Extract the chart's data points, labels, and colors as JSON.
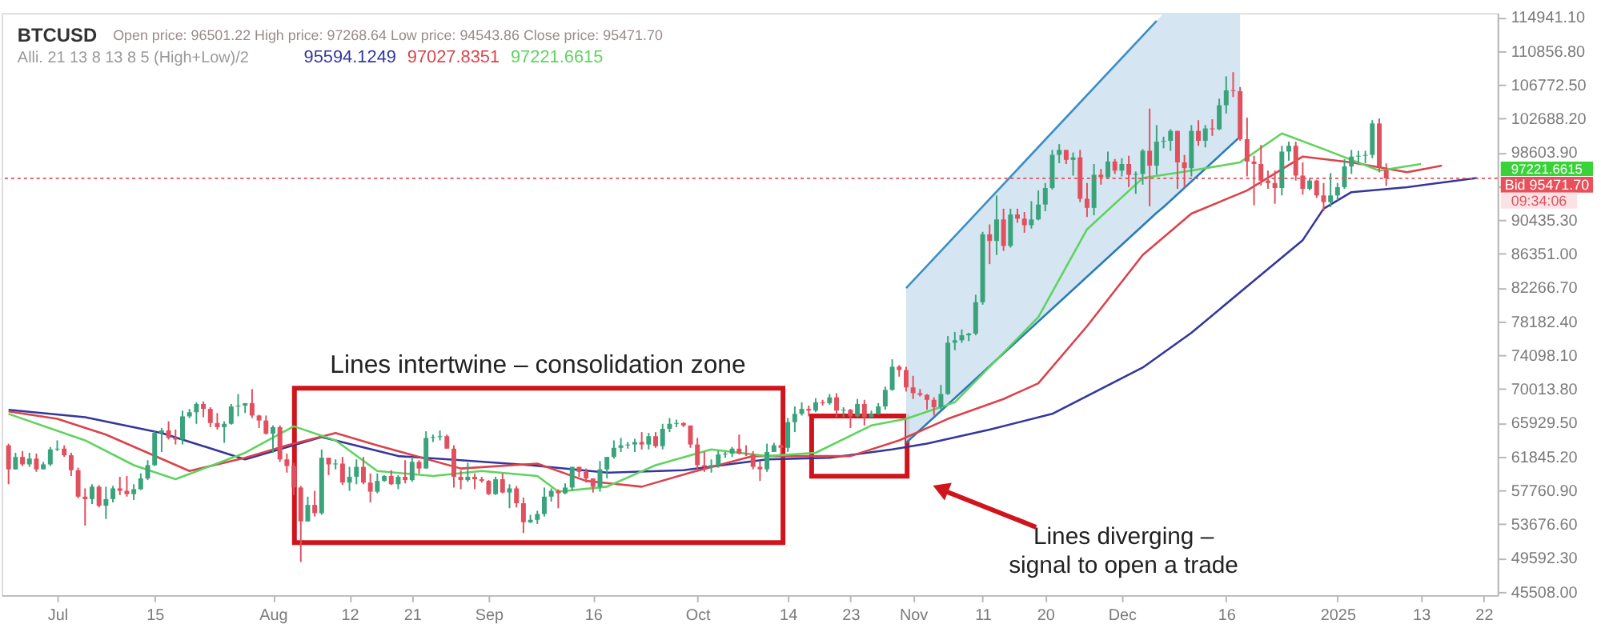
{
  "chart_data": {
    "type": "candlestick",
    "title": "BTCUSD",
    "subtitle": "Open price: 96501.22   High price: 97268.64   Low price: 94543.86   Close price: 95471.70",
    "x": [
      "2024-06-24",
      "2024-06-25",
      "2024-06-26",
      "2024-06-27",
      "2024-06-28",
      "2024-06-29",
      "2024-06-30",
      "2024-07-01",
      "2024-07-02",
      "2024-07-03",
      "2024-07-04",
      "2024-07-05",
      "2024-07-06",
      "2024-07-07",
      "2024-07-08",
      "2024-07-09",
      "2024-07-10",
      "2024-07-11",
      "2024-07-12",
      "2024-07-13",
      "2024-07-14",
      "2024-07-15",
      "2024-07-16",
      "2024-07-17",
      "2024-07-18",
      "2024-07-19",
      "2024-07-20",
      "2024-07-21",
      "2024-07-22",
      "2024-07-23",
      "2024-07-24",
      "2024-07-25",
      "2024-07-26",
      "2024-07-27",
      "2024-07-28",
      "2024-07-29",
      "2024-07-30",
      "2024-07-31",
      "2024-08-01",
      "2024-08-02",
      "2024-08-03",
      "2024-08-04",
      "2024-08-05",
      "2024-08-06",
      "2024-08-07",
      "2024-08-08",
      "2024-08-09",
      "2024-08-10",
      "2024-08-11",
      "2024-08-12",
      "2024-08-13",
      "2024-08-14",
      "2024-08-15",
      "2024-08-16",
      "2024-08-17",
      "2024-08-18",
      "2024-08-19",
      "2024-08-20",
      "2024-08-21",
      "2024-08-22",
      "2024-08-23",
      "2024-08-24",
      "2024-08-25",
      "2024-08-26",
      "2024-08-27",
      "2024-08-28",
      "2024-08-29",
      "2024-08-30",
      "2024-08-31",
      "2024-09-01",
      "2024-09-02",
      "2024-09-03",
      "2024-09-04",
      "2024-09-05",
      "2024-09-06",
      "2024-09-07",
      "2024-09-08",
      "2024-09-09",
      "2024-09-10",
      "2024-09-11",
      "2024-09-12",
      "2024-09-13",
      "2024-09-14",
      "2024-09-15",
      "2024-09-16",
      "2024-09-17",
      "2024-09-18",
      "2024-09-19",
      "2024-09-20",
      "2024-09-21",
      "2024-09-22",
      "2024-09-23",
      "2024-09-24",
      "2024-09-25",
      "2024-09-26",
      "2024-09-27",
      "2024-09-28",
      "2024-09-29",
      "2024-09-30",
      "2024-10-01",
      "2024-10-02",
      "2024-10-03",
      "2024-10-04",
      "2024-10-05",
      "2024-10-06",
      "2024-10-07",
      "2024-10-08",
      "2024-10-09",
      "2024-10-10",
      "2024-10-11",
      "2024-10-12",
      "2024-10-13",
      "2024-10-14",
      "2024-10-15",
      "2024-10-16",
      "2024-10-17",
      "2024-10-18",
      "2024-10-19",
      "2024-10-20",
      "2024-10-21",
      "2024-10-22",
      "2024-10-23",
      "2024-10-24",
      "2024-10-25",
      "2024-10-26",
      "2024-10-27",
      "2024-10-28",
      "2024-10-29",
      "2024-10-30",
      "2024-10-31",
      "2024-11-01",
      "2024-11-02",
      "2024-11-03",
      "2024-11-04",
      "2024-11-05",
      "2024-11-06",
      "2024-11-07",
      "2024-11-08",
      "2024-11-09",
      "2024-11-10",
      "2024-11-11",
      "2024-11-12",
      "2024-11-13",
      "2024-11-14",
      "2024-11-15",
      "2024-11-16",
      "2024-11-17",
      "2024-11-18",
      "2024-11-19",
      "2024-11-20",
      "2024-11-21",
      "2024-11-22",
      "2024-11-23",
      "2024-11-24",
      "2024-11-25",
      "2024-11-26",
      "2024-11-27",
      "2024-11-28",
      "2024-11-29",
      "2024-11-30",
      "2024-12-01",
      "2024-12-02",
      "2024-12-03",
      "2024-12-04",
      "2024-12-05",
      "2024-12-06",
      "2024-12-07",
      "2024-12-08",
      "2024-12-09",
      "2024-12-10",
      "2024-12-11",
      "2024-12-12",
      "2024-12-13",
      "2024-12-14",
      "2024-12-15",
      "2024-12-16",
      "2024-12-17",
      "2024-12-18",
      "2024-12-19",
      "2024-12-20",
      "2024-12-21",
      "2024-12-22",
      "2024-12-23",
      "2024-12-24",
      "2024-12-25",
      "2024-12-26",
      "2024-12-27",
      "2024-12-28",
      "2024-12-29",
      "2024-12-30",
      "2024-12-31",
      "2025-01-01",
      "2025-01-02",
      "2025-01-03",
      "2025-01-04",
      "2025-01-05",
      "2025-01-06",
      "2025-01-07",
      "2025-01-08"
    ],
    "ohlc": [
      [
        63200,
        63400,
        58500,
        60300
      ],
      [
        60300,
        62300,
        60300,
        61800
      ],
      [
        61800,
        62500,
        60700,
        60900
      ],
      [
        60900,
        62300,
        60600,
        61600
      ],
      [
        61600,
        62200,
        60000,
        60300
      ],
      [
        60300,
        61200,
        60300,
        60900
      ],
      [
        60900,
        63000,
        60700,
        62700
      ],
      [
        62700,
        63800,
        62500,
        62800
      ],
      [
        62800,
        63200,
        61800,
        62000
      ],
      [
        62000,
        62300,
        59500,
        60200
      ],
      [
        60200,
        60500,
        56800,
        57000
      ],
      [
        57000,
        58000,
        53500,
        56700
      ],
      [
        56700,
        58500,
        56100,
        58200
      ],
      [
        58200,
        58400,
        55700,
        55900
      ],
      [
        55900,
        58200,
        54300,
        56700
      ],
      [
        56700,
        58300,
        56300,
        58000
      ],
      [
        58000,
        59400,
        57200,
        57700
      ],
      [
        57700,
        59500,
        57000,
        57300
      ],
      [
        57300,
        58500,
        56600,
        57900
      ],
      [
        57900,
        59800,
        57800,
        59200
      ],
      [
        59200,
        61400,
        59000,
        60800
      ],
      [
        60800,
        64900,
        60700,
        64700
      ],
      [
        64700,
        65300,
        62400,
        65000
      ],
      [
        65000,
        66100,
        63900,
        64100
      ],
      [
        64100,
        65100,
        63300,
        63900
      ],
      [
        63900,
        67400,
        63300,
        66700
      ],
      [
        66700,
        67600,
        66500,
        67200
      ],
      [
        67200,
        68400,
        65800,
        68200
      ],
      [
        68200,
        68500,
        66600,
        67600
      ],
      [
        67600,
        67800,
        65400,
        65900
      ],
      [
        65900,
        67100,
        65100,
        65400
      ],
      [
        65400,
        66100,
        63500,
        65800
      ],
      [
        65800,
        68200,
        65700,
        67900
      ],
      [
        67900,
        69400,
        66700,
        68000
      ],
      [
        68000,
        68300,
        67100,
        68300
      ],
      [
        68300,
        70000,
        66500,
        66800
      ],
      [
        66800,
        66900,
        65300,
        66200
      ],
      [
        66200,
        66800,
        64500,
        64600
      ],
      [
        64600,
        65600,
        62300,
        65400
      ],
      [
        65400,
        65600,
        61200,
        61500
      ],
      [
        61500,
        62200,
        59900,
        60700
      ],
      [
        60700,
        61100,
        57200,
        58100
      ],
      [
        58100,
        58300,
        49100,
        54000
      ],
      [
        54000,
        57000,
        54000,
        56000
      ],
      [
        56000,
        57700,
        54600,
        55000
      ],
      [
        55000,
        62700,
        54800,
        61700
      ],
      [
        61700,
        61700,
        59600,
        60900
      ],
      [
        60900,
        61500,
        60300,
        61000
      ],
      [
        61000,
        61800,
        58400,
        58700
      ],
      [
        58700,
        60600,
        57700,
        59400
      ],
      [
        59400,
        61500,
        58500,
        60600
      ],
      [
        60600,
        61800,
        58500,
        58700
      ],
      [
        58700,
        59800,
        56300,
        57600
      ],
      [
        57600,
        59800,
        57400,
        58900
      ],
      [
        58900,
        59600,
        58800,
        59500
      ],
      [
        59500,
        60200,
        58400,
        58500
      ],
      [
        58500,
        59600,
        57900,
        59400
      ],
      [
        59400,
        61400,
        58600,
        59000
      ],
      [
        59000,
        61800,
        58800,
        61200
      ],
      [
        61200,
        61400,
        59800,
        60400
      ],
      [
        60400,
        64900,
        60400,
        64100
      ],
      [
        64100,
        64500,
        63600,
        64200
      ],
      [
        64200,
        65000,
        63800,
        64300
      ],
      [
        64300,
        64500,
        62800,
        62800
      ],
      [
        62800,
        63200,
        58100,
        59400
      ],
      [
        59400,
        60200,
        57900,
        59000
      ],
      [
        59000,
        61100,
        58800,
        59400
      ],
      [
        59400,
        59800,
        57900,
        59100
      ],
      [
        59100,
        59400,
        58700,
        58900
      ],
      [
        58900,
        59000,
        57200,
        57300
      ],
      [
        57300,
        59400,
        57200,
        59100
      ],
      [
        59100,
        59800,
        57400,
        57500
      ],
      [
        57500,
        58500,
        55600,
        58000
      ],
      [
        58000,
        58300,
        55700,
        56200
      ],
      [
        56200,
        56900,
        52600,
        53900
      ],
      [
        53900,
        54800,
        53800,
        54200
      ],
      [
        54200,
        55300,
        53700,
        54900
      ],
      [
        54900,
        58100,
        54600,
        57000
      ],
      [
        57000,
        58000,
        56400,
        57700
      ],
      [
        57700,
        57900,
        55600,
        57400
      ],
      [
        57400,
        58600,
        57300,
        58100
      ],
      [
        58100,
        60600,
        57700,
        60600
      ],
      [
        60600,
        60600,
        59400,
        60000
      ],
      [
        60000,
        60400,
        58700,
        59200
      ],
      [
        59200,
        59200,
        57500,
        58200
      ],
      [
        58200,
        61300,
        57600,
        60300
      ],
      [
        60300,
        61800,
        59200,
        61800
      ],
      [
        61800,
        63800,
        61600,
        62900
      ],
      [
        62900,
        64100,
        62400,
        63200
      ],
      [
        63200,
        63600,
        62800,
        63300
      ],
      [
        63300,
        64000,
        62400,
        63600
      ],
      [
        63600,
        64800,
        62700,
        63300
      ],
      [
        63300,
        64700,
        62700,
        64300
      ],
      [
        64300,
        64800,
        62900,
        63100
      ],
      [
        63100,
        65800,
        62700,
        65200
      ],
      [
        65200,
        66500,
        64800,
        65800
      ],
      [
        65800,
        66300,
        65400,
        65900
      ],
      [
        65900,
        66000,
        65400,
        65600
      ],
      [
        65600,
        65600,
        62900,
        63300
      ],
      [
        63300,
        64100,
        60100,
        60800
      ],
      [
        60800,
        62400,
        60000,
        60600
      ],
      [
        60600,
        61500,
        59900,
        60800
      ],
      [
        60800,
        62500,
        60500,
        62100
      ],
      [
        62100,
        62400,
        61700,
        62200
      ],
      [
        62200,
        63000,
        61800,
        62800
      ],
      [
        62800,
        64500,
        62100,
        62200
      ],
      [
        62200,
        63200,
        61900,
        62100
      ],
      [
        62100,
        62500,
        60300,
        60600
      ],
      [
        60600,
        61300,
        58900,
        60300
      ],
      [
        60300,
        63400,
        60000,
        62400
      ],
      [
        62400,
        63500,
        62400,
        63200
      ],
      [
        63200,
        63300,
        62100,
        62900
      ],
      [
        62900,
        66500,
        62400,
        66000
      ],
      [
        66000,
        67900,
        64800,
        67000
      ],
      [
        67000,
        68400,
        66800,
        67600
      ],
      [
        67600,
        68000,
        66700,
        67400
      ],
      [
        67400,
        68900,
        67200,
        68400
      ],
      [
        68400,
        68700,
        68000,
        68300
      ],
      [
        68300,
        69400,
        68100,
        69000
      ],
      [
        69000,
        69500,
        66600,
        67400
      ],
      [
        67400,
        67800,
        66600,
        67500
      ],
      [
        67500,
        67600,
        65300,
        66700
      ],
      [
        66700,
        68800,
        66600,
        68200
      ],
      [
        68200,
        68700,
        65600,
        66600
      ],
      [
        66600,
        67400,
        66600,
        67000
      ],
      [
        67000,
        68300,
        66900,
        67900
      ],
      [
        67900,
        70300,
        67500,
        69900
      ],
      [
        69900,
        73600,
        69800,
        72700
      ],
      [
        72700,
        72900,
        71500,
        72300
      ],
      [
        72300,
        72700,
        69700,
        70200
      ],
      [
        70200,
        71600,
        68800,
        69500
      ],
      [
        69500,
        70000,
        69100,
        69300
      ],
      [
        69300,
        69400,
        67500,
        68700
      ],
      [
        68700,
        69000,
        66800,
        67800
      ],
      [
        67800,
        70500,
        67500,
        69400
      ],
      [
        69400,
        76400,
        69300,
        75600
      ],
      [
        75600,
        76900,
        74700,
        75900
      ],
      [
        75900,
        77200,
        75600,
        76500
      ],
      [
        76500,
        76800,
        75800,
        76700
      ],
      [
        76700,
        81400,
        76500,
        80500
      ],
      [
        80500,
        89000,
        80200,
        88700
      ],
      [
        88700,
        89900,
        85100,
        87900
      ],
      [
        87900,
        93400,
        86200,
        90500
      ],
      [
        90500,
        91800,
        86700,
        87300
      ],
      [
        87300,
        91800,
        87100,
        91100
      ],
      [
        91100,
        91800,
        90100,
        90600
      ],
      [
        90600,
        91400,
        88900,
        89800
      ],
      [
        89800,
        92700,
        89400,
        90500
      ],
      [
        90500,
        94000,
        90400,
        92300
      ],
      [
        92300,
        94900,
        91500,
        94300
      ],
      [
        94300,
        98900,
        94100,
        98300
      ],
      [
        98300,
        99600,
        97300,
        98900
      ],
      [
        98900,
        98900,
        97200,
        97700
      ],
      [
        97700,
        98600,
        95800,
        98000
      ],
      [
        98000,
        98900,
        92600,
        93000
      ],
      [
        93000,
        94900,
        90800,
        91900
      ],
      [
        91900,
        97200,
        91000,
        95900
      ],
      [
        95900,
        96600,
        94700,
        95600
      ],
      [
        95600,
        98700,
        95400,
        97500
      ],
      [
        97500,
        97800,
        96000,
        96400
      ],
      [
        96400,
        97900,
        95700,
        97200
      ],
      [
        97200,
        98200,
        94400,
        95900
      ],
      [
        95900,
        96300,
        93600,
        96000
      ],
      [
        96000,
        99000,
        94700,
        98800
      ],
      [
        98800,
        103900,
        92100,
        97000
      ],
      [
        97000,
        101900,
        95900,
        99900
      ],
      [
        99900,
        100500,
        99100,
        100000
      ],
      [
        100000,
        101400,
        98800,
        101200
      ],
      [
        101200,
        101200,
        94200,
        97400
      ],
      [
        97400,
        98300,
        94300,
        96700
      ],
      [
        96700,
        101900,
        95700,
        101200
      ],
      [
        101200,
        102500,
        99400,
        100000
      ],
      [
        100000,
        101900,
        99200,
        101500
      ],
      [
        101500,
        102600,
        100600,
        101400
      ],
      [
        101400,
        105100,
        101300,
        104300
      ],
      [
        104300,
        107800,
        103300,
        106100
      ],
      [
        106100,
        108300,
        105300,
        106000
      ],
      [
        106000,
        106500,
        100000,
        100200
      ],
      [
        100200,
        102800,
        95700,
        97500
      ],
      [
        97500,
        98200,
        92200,
        97200
      ],
      [
        97200,
        99500,
        94600,
        95200
      ],
      [
        95200,
        96400,
        94200,
        94900
      ],
      [
        94900,
        96400,
        92400,
        94300
      ],
      [
        94300,
        99400,
        93400,
        98700
      ],
      [
        98700,
        99900,
        97600,
        99400
      ],
      [
        99400,
        99900,
        95200,
        95800
      ],
      [
        95800,
        97400,
        93500,
        94200
      ],
      [
        94200,
        95500,
        94000,
        95200
      ],
      [
        95200,
        95300,
        93100,
        93400
      ],
      [
        93400,
        94900,
        91500,
        92600
      ],
      [
        92600,
        96100,
        92000,
        93400
      ],
      [
        93400,
        94900,
        92800,
        94400
      ],
      [
        94400,
        97800,
        94200,
        96900
      ],
      [
        96900,
        98900,
        96000,
        98100
      ],
      [
        98100,
        98800,
        97300,
        98200
      ],
      [
        98200,
        98800,
        97300,
        98300
      ],
      [
        98300,
        102500,
        97900,
        102100
      ],
      [
        102100,
        102700,
        96200,
        96900
      ],
      [
        96501.22,
        97268.64,
        94543.86,
        95471.7
      ]
    ],
    "series": [
      {
        "type": "line",
        "color": "#3b8ec6",
        "x": [
          "2024-10-31",
          "2024-12-06"
        ],
        "values": [
          82200,
          114500
        ]
      },
      {
        "type": "line",
        "color": "#2a7bb8",
        "x": [
          "2024-10-31",
          "2024-12-06",
          "2024-12-07",
          "2024-12-18"
        ],
        "values": [
          63500,
          91300,
          92000,
          100500
        ],
        "lower": [
          63500,
          91300,
          92000,
          100500
        ],
        "upper": [
          82200,
          114500,
          115400,
          115400
        ]
      },
      {
        "type": "line",
        "color": "#34369c",
        "x": [
          "2024-06-24",
          "2024-07-05",
          "2024-07-16",
          "2024-07-28",
          "2024-08-08",
          "2024-08-19",
          "2024-08-28",
          "2024-09-07",
          "2024-09-18",
          "2024-09-29",
          "2024-10-11",
          "2024-10-20",
          "2024-10-29",
          "2024-11-03",
          "2024-11-12",
          "2024-11-21",
          "2024-12-04",
          "2024-12-11",
          "2024-12-19",
          "2024-12-27",
          "2024-12-30",
          "2025-01-03",
          "2025-01-11",
          "2025-01-21"
        ],
        "values": [
          67500,
          66600,
          64700,
          61500,
          64200,
          61900,
          61400,
          60800,
          59900,
          60200,
          61500,
          61700,
          62700,
          63400,
          65100,
          67000,
          72600,
          76800,
          82400,
          88000,
          91800,
          93800,
          94400,
          95500
        ]
      },
      {
        "type": "line",
        "color": "#d9434b",
        "x": [
          "2024-06-24",
          "2024-07-01",
          "2024-07-08",
          "2024-07-20",
          "2024-07-28",
          "2024-08-03",
          "2024-08-10",
          "2024-08-16",
          "2024-08-28",
          "2024-09-08",
          "2024-09-15",
          "2024-09-23",
          "2024-09-30",
          "2024-10-09",
          "2024-10-15",
          "2024-10-23",
          "2024-10-30",
          "2024-11-06",
          "2024-11-14",
          "2024-11-19",
          "2024-11-26",
          "2024-12-04",
          "2024-12-11",
          "2024-12-19",
          "2024-12-27",
          "2025-01-03",
          "2025-01-11",
          "2025-01-16"
        ],
        "values": [
          67300,
          66400,
          64500,
          60100,
          61700,
          63200,
          64700,
          63200,
          60400,
          61000,
          58900,
          58200,
          59900,
          61900,
          61900,
          61900,
          63800,
          66400,
          68800,
          70700,
          77600,
          86200,
          91200,
          94000,
          98100,
          97400,
          96200,
          97000
        ]
      },
      {
        "type": "line",
        "color": "#5fd35f",
        "x": [
          "2024-06-24",
          "2024-07-05",
          "2024-07-12",
          "2024-07-18",
          "2024-07-28",
          "2024-08-04",
          "2024-08-10",
          "2024-08-16",
          "2024-08-24",
          "2024-08-31",
          "2024-09-08",
          "2024-09-11",
          "2024-09-18",
          "2024-09-25",
          "2024-10-03",
          "2024-10-11",
          "2024-10-18",
          "2024-10-26",
          "2024-10-31",
          "2024-11-07",
          "2024-11-19",
          "2024-11-26",
          "2024-12-04",
          "2024-12-11",
          "2024-12-18",
          "2024-12-24",
          "2024-12-30",
          "2025-01-07",
          "2025-01-13"
        ],
        "values": [
          67000,
          63800,
          60800,
          59100,
          62300,
          65500,
          63800,
          60100,
          59500,
          60100,
          59500,
          57600,
          58200,
          60800,
          62700,
          61900,
          62300,
          65600,
          66400,
          68400,
          78700,
          89300,
          95500,
          96400,
          97400,
          100900,
          99000,
          96400,
          97200
        ]
      }
    ],
    "xlim": [
      "2024-06-23",
      "2025-01-24"
    ],
    "ylim": [
      45100,
      115450
    ],
    "xticks": [
      {
        "value": "2024-07-01",
        "label": "Jul"
      },
      {
        "value": "2024-07-15",
        "label": "15"
      },
      {
        "value": "2024-08-01",
        "label": "Aug"
      },
      {
        "value": "2024-08-12",
        "label": "12"
      },
      {
        "value": "2024-08-21",
        "label": "21"
      },
      {
        "value": "2024-09-01",
        "label": "Sep"
      },
      {
        "value": "2024-09-16",
        "label": "16"
      },
      {
        "value": "2024-10-01",
        "label": "Oct"
      },
      {
        "value": "2024-10-14",
        "label": "14"
      },
      {
        "value": "2024-10-23",
        "label": "23"
      },
      {
        "value": "2024-11-01",
        "label": "Nov"
      },
      {
        "value": "2024-11-11",
        "label": "11"
      },
      {
        "value": "2024-11-20",
        "label": "20"
      },
      {
        "value": "2024-12-01",
        "label": "Dec"
      },
      {
        "value": "2024-12-16",
        "label": "16"
      },
      {
        "value": "2025-01-01",
        "label": "2025"
      },
      {
        "value": "2025-01-13",
        "label": "13"
      },
      {
        "value": "2025-01-22",
        "label": "22"
      }
    ],
    "yticks": [
      {
        "value": 45508,
        "label": "45508.00"
      },
      {
        "value": 49592.3,
        "label": "49592.30"
      },
      {
        "value": 53676.6,
        "label": "53676.60"
      },
      {
        "value": 57760.9,
        "label": "57760.90"
      },
      {
        "value": 61845.2,
        "label": "61845.20"
      },
      {
        "value": 65929.5,
        "label": "65929.50"
      },
      {
        "value": 70013.8,
        "label": "70013.80"
      },
      {
        "value": 74098.1,
        "label": "74098.10"
      },
      {
        "value": 78182.4,
        "label": "78182.40"
      },
      {
        "value": 82266.7,
        "label": "82266.70"
      },
      {
        "value": 86351,
        "label": "86351.00"
      },
      {
        "value": 90435.3,
        "label": "90435.30"
      },
      {
        "value": 94519.6,
        "label": null
      },
      {
        "value": 98603.9,
        "label": "98603.90"
      },
      {
        "value": 102688.2,
        "label": "102688.20"
      },
      {
        "value": 106772.5,
        "label": "106772.50"
      },
      {
        "value": 110856.8,
        "label": "110856.80"
      },
      {
        "value": 114941.1,
        "label": "114941.10"
      }
    ],
    "ref_lines": [
      {
        "axis": "y",
        "value": 95471.7,
        "label": "Bid 95471.70",
        "color": "#e8505b",
        "line_style": "dotted"
      }
    ],
    "annotations": [
      "Alli. 21 13 8 13 8 5 (High+Low)/2",
      "95594.1249",
      "97027.8351",
      "97221.6615",
      "Lines intertwine – consolidation zone",
      "Lines diverging –\nsignal to open a trade",
      "97221.6615",
      "09:34:06"
    ]
  }
}
